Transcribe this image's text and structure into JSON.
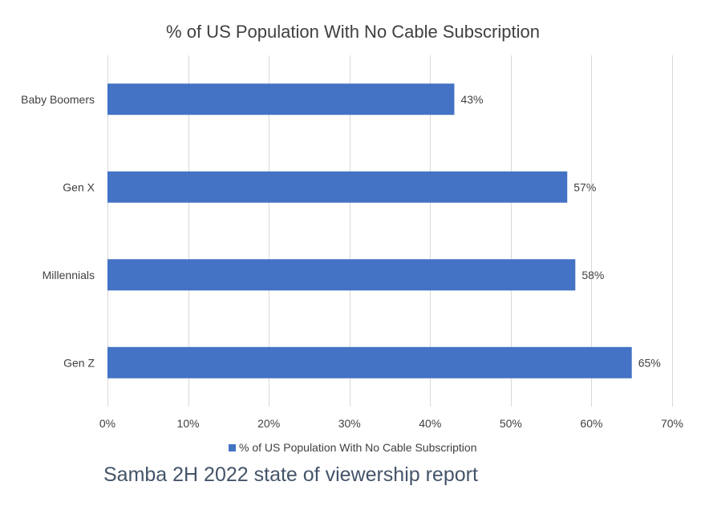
{
  "chart_data": {
    "type": "bar",
    "orientation": "horizontal",
    "title": "% of US Population With No Cable Subscription",
    "categories": [
      "Baby Boomers",
      "Gen X",
      "Millennials",
      "Gen Z"
    ],
    "series": [
      {
        "name": "% of US Population With No Cable Subscription",
        "values": [
          43,
          57,
          58,
          65
        ],
        "data_labels": [
          "43%",
          "57%",
          "58%",
          "65%"
        ],
        "color": "#4472c4"
      }
    ],
    "xlabel": "",
    "ylabel": "",
    "xlim": [
      0,
      70
    ],
    "x_ticks": [
      0,
      10,
      20,
      30,
      40,
      50,
      60,
      70
    ],
    "x_tick_labels": [
      "0%",
      "10%",
      "20%",
      "30%",
      "40%",
      "50%",
      "60%",
      "70%"
    ],
    "grid": true,
    "legend_position": "bottom"
  },
  "caption": "Samba 2H 2022 state of viewership report"
}
